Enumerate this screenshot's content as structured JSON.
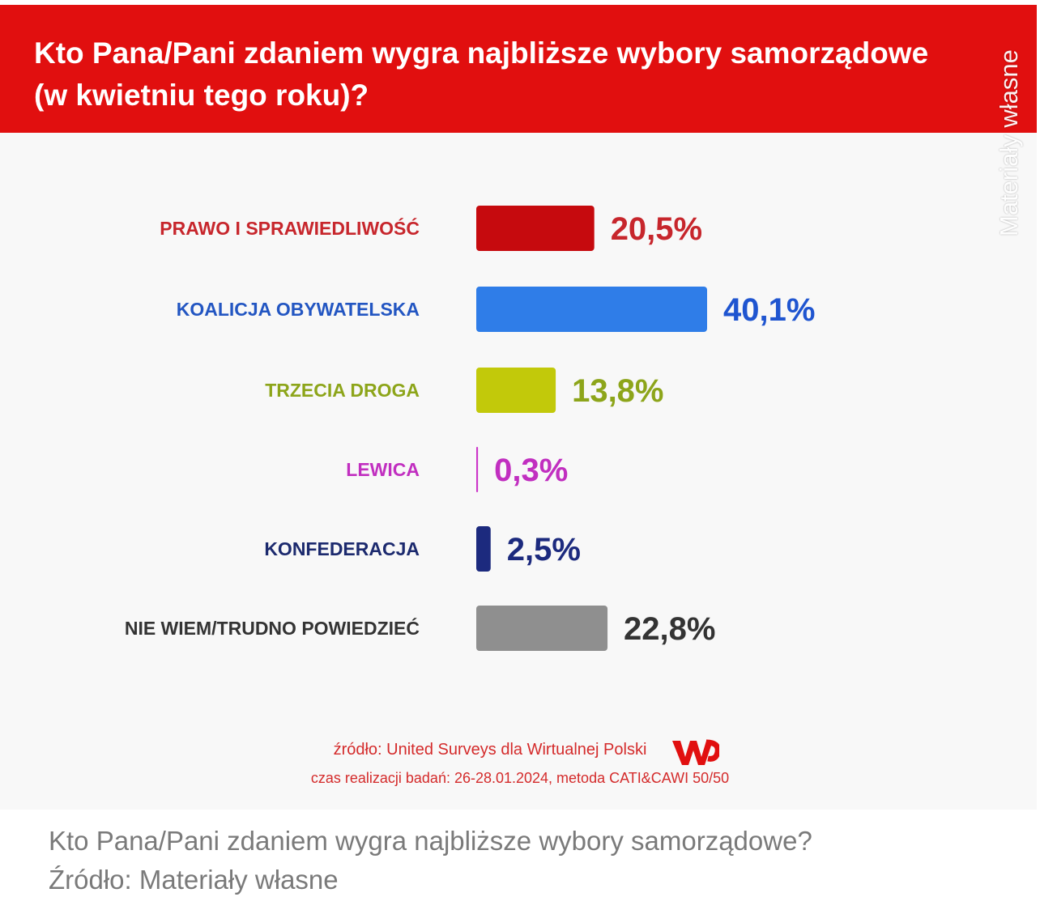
{
  "header": {
    "title": "Kto Pana/Pani zdaniem wygra najbliższe wybory samorządowe\n(w kwietniu tego roku)?",
    "watermark": "Materiały własne",
    "background_color": "#e10f0f"
  },
  "chart_data": {
    "type": "bar",
    "orientation": "horizontal",
    "title": "Kto Pana/Pani zdaniem wygra najbliższe wybory samorządowe (w kwietniu tego roku)?",
    "categories": [
      "PRAWO I SPRAWIEDLIWOŚĆ",
      "KOALICJA OBYWATELSKA",
      "TRZECIA DROGA",
      "LEWICA",
      "KONFEDERACJA",
      "NIE WIEM/TRUDNO POWIEDZIEĆ"
    ],
    "values": [
      20.5,
      40.1,
      13.8,
      0.3,
      2.5,
      22.8
    ],
    "value_labels": [
      "20,5%",
      "40,1%",
      "13,8%",
      "0,3%",
      "2,5%",
      "22,8%"
    ],
    "colors": [
      "#c60a0e",
      "#2f7de8",
      "#c2c90a",
      "#cc36c9",
      "#1c2a7e",
      "#8f8f8f"
    ],
    "label_colors": [
      "#c7262c",
      "#2356c2",
      "#8da51a",
      "#c12fc0",
      "#1c2a6e",
      "#333333"
    ],
    "value_colors": [
      "#c7262c",
      "#1f55d0",
      "#8da51a",
      "#c12fc0",
      "#1c2a7e",
      "#333333"
    ],
    "unit": "%",
    "grid": false,
    "legend": "none"
  },
  "source": {
    "line1": "źródło: United Surveys dla Wirtualnej Polski",
    "line2": "czas realizacji badań: 26-28.01.2024, metoda CATI&CAWI 50/50",
    "logo": "WP"
  },
  "caption": {
    "line1": "Kto Pana/Pani zdaniem wygra najbliższe wybory samorządowe?",
    "line2": "Źródło: Materiały własne"
  }
}
